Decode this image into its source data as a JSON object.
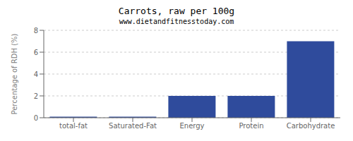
{
  "chart_data": {
    "type": "bar",
    "title": "Carrots, raw per 100g",
    "subtitle": "www.dietandfitnesstoday.com",
    "categories": [
      "total-fat",
      "Saturated-Fat",
      "Energy",
      "Protein",
      "Carbohydrate"
    ],
    "values": [
      0.1,
      0.1,
      2.0,
      2.0,
      7.0
    ],
    "color": "#2f4b9c",
    "ylabel": "Percentage of RDH (%)",
    "ylim": [
      0,
      8
    ],
    "yticks": [
      0,
      2,
      4,
      6,
      8
    ],
    "grid": true
  }
}
